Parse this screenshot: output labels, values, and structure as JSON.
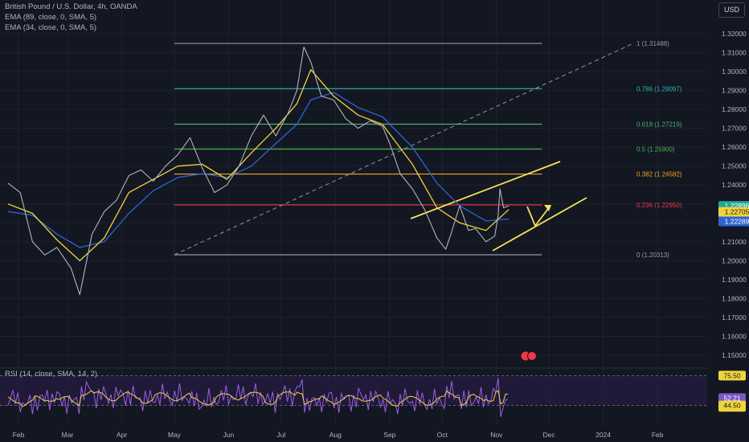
{
  "header": {
    "symbol": "British Pound / U.S. Dollar, 4h, OANDA",
    "indicator_1": "EMA (89, close, 0, SMA, 5)",
    "indicator_2": "EMA (34, close, 0, SMA, 5)",
    "currency_button": "USD"
  },
  "rsi_panel": {
    "title": "RSI (14, close, SMA, 14, 2)"
  },
  "colors": {
    "background": "#131722",
    "grid": "#1e222d",
    "price_line": "#b2b5be",
    "ema34": "#f0d43c",
    "ema89": "#2f63d4",
    "trend_lines": "#f2e35a",
    "rsi_line": "#9a5fe0",
    "rsi_band": "#2a1e48",
    "price_label": "#26a69a"
  },
  "chart_data": [
    {
      "type": "line",
      "title": "British Pound / U.S. Dollar, 4h, OANDA",
      "x_axis": {
        "labels": [
          "Feb",
          "Mar",
          "Apr",
          "May",
          "Jun",
          "Jul",
          "Aug",
          "Sep",
          "Oct",
          "Nov",
          "Dec",
          "2024",
          "Feb"
        ]
      },
      "y_axis": {
        "range": [
          1.14,
          1.325
        ],
        "tick_labels": [
          "1.32000",
          "1.31000",
          "1.30000",
          "1.29000",
          "1.28000",
          "1.27000",
          "1.26000",
          "1.25000",
          "1.24000",
          "1.23000",
          "1.22000",
          "1.21000",
          "1.20000",
          "1.19000",
          "1.18000",
          "1.17000",
          "1.16000",
          "1.15000"
        ]
      },
      "series": [
        {
          "kind": "price",
          "points": [
            [
              "Jan 26",
              1.241
            ],
            [
              "Feb 2",
              1.236
            ],
            [
              "Feb 9",
              1.21
            ],
            [
              "Feb 16",
              1.203
            ],
            [
              "Feb 23",
              1.207
            ],
            [
              "Mar 3",
              1.196
            ],
            [
              "Mar 8",
              1.182
            ],
            [
              "Mar 15",
              1.214
            ],
            [
              "Mar 22",
              1.226
            ],
            [
              "Mar 29",
              1.232
            ],
            [
              "Apr 5",
              1.245
            ],
            [
              "Apr 12",
              1.248
            ],
            [
              "Apr 19",
              1.242
            ],
            [
              "Apr 26",
              1.25
            ],
            [
              "May 3",
              1.256
            ],
            [
              "May 10",
              1.265
            ],
            [
              "May 17",
              1.249
            ],
            [
              "May 24",
              1.236
            ],
            [
              "May 31",
              1.24
            ],
            [
              "Jun 7",
              1.25
            ],
            [
              "Jun 14",
              1.266
            ],
            [
              "Jun 21",
              1.277
            ],
            [
              "Jun 28",
              1.266
            ],
            [
              "Jul 5",
              1.278
            ],
            [
              "Jul 10",
              1.29
            ],
            [
              "Jul 14",
              1.313
            ],
            [
              "Jul 18",
              1.305
            ],
            [
              "Jul 24",
              1.287
            ],
            [
              "Jul 31",
              1.285
            ],
            [
              "Aug 7",
              1.275
            ],
            [
              "Aug 14",
              1.27
            ],
            [
              "Aug 21",
              1.274
            ],
            [
              "Aug 28",
              1.271
            ],
            [
              "Sep 1",
              1.262
            ],
            [
              "Sep 7",
              1.246
            ],
            [
              "Sep 14",
              1.238
            ],
            [
              "Sep 21",
              1.227
            ],
            [
              "Sep 28",
              1.212
            ],
            [
              "Oct 3",
              1.206
            ],
            [
              "Oct 6",
              1.214
            ],
            [
              "Oct 11",
              1.229
            ],
            [
              "Oct 16",
              1.216
            ],
            [
              "Oct 20",
              1.217
            ],
            [
              "Oct 26",
              1.21
            ],
            [
              "Oct 31",
              1.213
            ],
            [
              "Nov 2",
              1.224
            ],
            [
              "Nov 3",
              1.238
            ],
            [
              "Nov 5",
              1.228
            ],
            [
              "Nov 8",
              1.229
            ]
          ]
        },
        {
          "name": "EMA (34, close, 0, SMA, 5)",
          "points": [
            [
              "Jan 26",
              1.23
            ],
            [
              "Feb 9",
              1.225
            ],
            [
              "Feb 23",
              1.211
            ],
            [
              "Mar 8",
              1.2
            ],
            [
              "Mar 22",
              1.212
            ],
            [
              "Apr 5",
              1.236
            ],
            [
              "Apr 19",
              1.243
            ],
            [
              "May 3",
              1.25
            ],
            [
              "May 17",
              1.251
            ],
            [
              "May 31",
              1.243
            ],
            [
              "Jun 14",
              1.257
            ],
            [
              "Jun 28",
              1.27
            ],
            [
              "Jul 10",
              1.283
            ],
            [
              "Jul 18",
              1.301
            ],
            [
              "Jul 31",
              1.287
            ],
            [
              "Aug 14",
              1.277
            ],
            [
              "Aug 28",
              1.272
            ],
            [
              "Sep 14",
              1.251
            ],
            [
              "Sep 28",
              1.228
            ],
            [
              "Oct 11",
              1.22
            ],
            [
              "Oct 26",
              1.216
            ],
            [
              "Nov 8",
              1.227
            ]
          ]
        },
        {
          "name": "EMA (89, close, 0, SMA, 5)",
          "points": [
            [
              "Jan 26",
              1.226
            ],
            [
              "Feb 9",
              1.224
            ],
            [
              "Feb 23",
              1.214
            ],
            [
              "Mar 8",
              1.207
            ],
            [
              "Mar 22",
              1.21
            ],
            [
              "Apr 5",
              1.225
            ],
            [
              "Apr 19",
              1.237
            ],
            [
              "May 3",
              1.244
            ],
            [
              "May 17",
              1.246
            ],
            [
              "May 31",
              1.244
            ],
            [
              "Jun 14",
              1.25
            ],
            [
              "Jun 28",
              1.262
            ],
            [
              "Jul 10",
              1.272
            ],
            [
              "Jul 18",
              1.285
            ],
            [
              "Jul 31",
              1.289
            ],
            [
              "Aug 14",
              1.281
            ],
            [
              "Aug 28",
              1.276
            ],
            [
              "Sep 14",
              1.26
            ],
            [
              "Sep 28",
              1.241
            ],
            [
              "Oct 11",
              1.229
            ],
            [
              "Oct 26",
              1.221
            ],
            [
              "Nov 8",
              1.222
            ]
          ]
        }
      ],
      "fibonacci": [
        {
          "label": "1 (1.31488)",
          "value": 1.31488,
          "color": "#9598a1"
        },
        {
          "label": "0.786 (1.29097)",
          "value": 1.29097,
          "color": "#2ab5b5"
        },
        {
          "label": "0.618 (1.27219)",
          "value": 1.27219,
          "color": "#4caf78"
        },
        {
          "label": "0.5 (1.25900)",
          "value": 1.259,
          "color": "#4caf50"
        },
        {
          "label": "0.382 (1.24582)",
          "value": 1.24582,
          "color": "#f5a623"
        },
        {
          "label": "0.236 (1.22950)",
          "value": 1.2295,
          "color": "#f23645"
        },
        {
          "label": "0 (1.20313)",
          "value": 1.20313,
          "color": "#9598a1"
        }
      ],
      "price_labels": [
        {
          "text": "1.22896",
          "value": 1.22896,
          "bg": "#26a69a",
          "fg": "#ffffff"
        },
        {
          "text": "01:40:34",
          "value": 1.2247,
          "bg": "#26a69a",
          "fg": "#ffffff"
        },
        {
          "text": "1.22705",
          "value": 1.22705,
          "bg": "#f0d43c",
          "fg": "#131722"
        },
        {
          "text": "1.22289",
          "value": 1.22289,
          "bg": "#2f63d4",
          "fg": "#ffffff"
        }
      ]
    },
    {
      "type": "line",
      "title": "RSI (14, close, SMA, 14, 2)",
      "y_axis": {
        "range": [
          25,
          80
        ]
      },
      "levels": [
        {
          "label": "75.50",
          "value": 75.5,
          "bg": "#f0d43c",
          "fg": "#131722"
        },
        {
          "label": "52.21",
          "value": 52.21,
          "bg": "#7e57c2",
          "fg": "#ffffff"
        },
        {
          "label": "50.65",
          "value": 50.65,
          "bg": "#f0d43c",
          "fg": "#131722"
        },
        {
          "label": "44.50",
          "value": 44.5,
          "bg": "#f0d43c",
          "fg": "#131722"
        }
      ]
    }
  ]
}
